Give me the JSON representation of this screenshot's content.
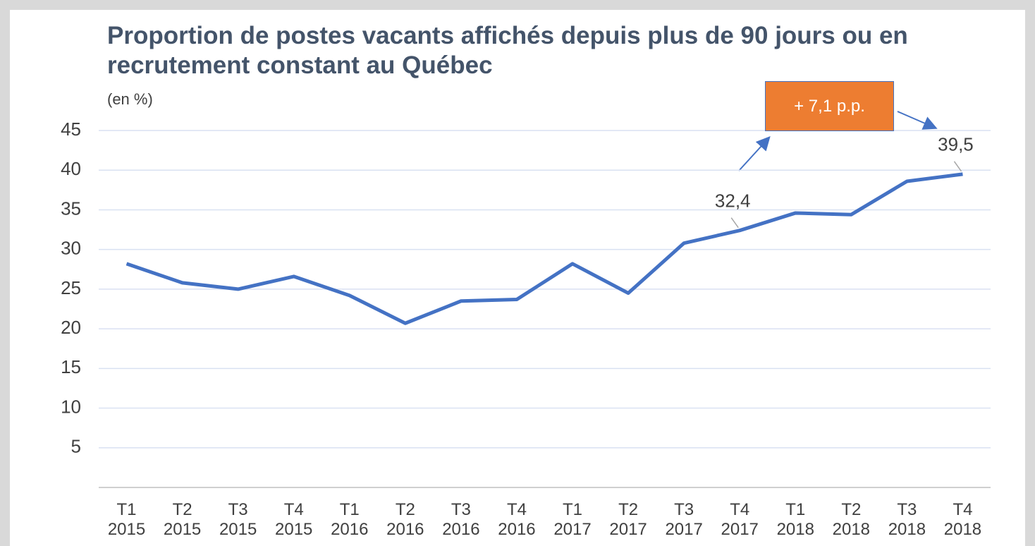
{
  "chart_data": {
    "type": "line",
    "title": "Proportion de postes vacants affichés depuis plus de 90 jours ou en recrutement constant au Québec",
    "subtitle": "(en %)",
    "annotation": "+ 7,1 p.p.",
    "categories": [
      "T1 2015",
      "T2 2015",
      "T3 2015",
      "T4 2015",
      "T1 2016",
      "T2 2016",
      "T3 2016",
      "T4 2016",
      "T1 2017",
      "T2 2017",
      "T3 2017",
      "T4 2017",
      "T1 2018",
      "T2 2018",
      "T3 2018",
      "T4 2018"
    ],
    "series": [
      {
        "color": "#4472c4",
        "values": [
          28.2,
          25.8,
          25.0,
          26.6,
          24.2,
          20.7,
          23.5,
          23.7,
          28.2,
          24.5,
          30.8,
          32.4,
          34.6,
          34.4,
          38.6,
          39.5
        ],
        "value_labels": [
          null,
          null,
          null,
          null,
          null,
          null,
          null,
          null,
          null,
          null,
          null,
          "32,4",
          null,
          null,
          null,
          "39,5"
        ]
      }
    ],
    "ylim": [
      0,
      45
    ],
    "yticks": [
      5,
      10,
      15,
      20,
      25,
      30,
      35,
      40,
      45
    ],
    "grid": true
  }
}
